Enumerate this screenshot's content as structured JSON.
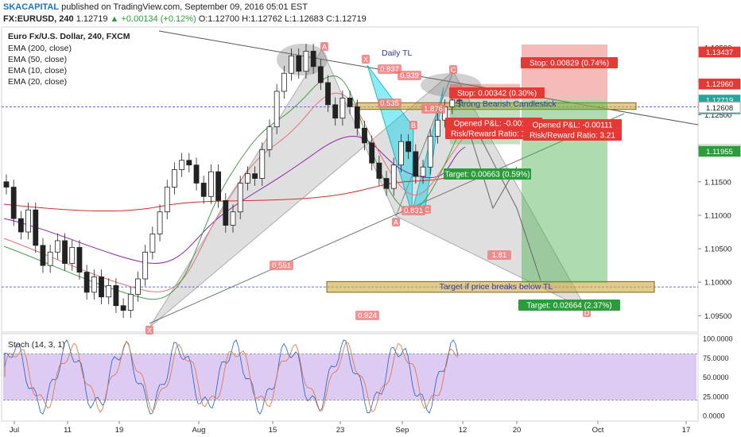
{
  "header": {
    "brand": "SKACAPITAL",
    "published": "published on TradingView.com, September 09, 2016 05:01 EST",
    "symbol": "FX:EURUSD, 240",
    "last": "1.12719",
    "change": "+0.00134 (+0.12%)",
    "ohlc": "O:1.12700 H:1.12762 L:1.12683 C:1.12719"
  },
  "legend": {
    "title": "Euro Fx/U.S. Dollar, 240, FXCM",
    "ema200": "EMA (200, close)",
    "ema50": "EMA (50, close)",
    "ema10": "EMA (10, close)",
    "ema20": "EMA (20, close)"
  },
  "stoch_label": "Stoch (14, 3, 1)",
  "chart_data": {
    "type": "candlestick",
    "symbol": "EURUSD",
    "timeframe": "240",
    "ylim": [
      1.0935,
      1.1368
    ],
    "y_ticks": [
      "1.13500",
      "1.13000",
      "1.12500",
      "1.12000",
      "1.11500",
      "1.11000",
      "1.10500",
      "1.10000",
      "1.09500"
    ],
    "x_ticks": [
      "Jul",
      "11",
      "19",
      "Aug",
      "15",
      "23",
      "Sep",
      "12",
      "20",
      "Oct",
      "17"
    ],
    "price_markers": [
      {
        "label": "1.13437",
        "value": 1.13437,
        "color": "#e53935"
      },
      {
        "label": "1.12960",
        "value": 1.1296,
        "color": "#e53935"
      },
      {
        "label": "1.12719",
        "value": 1.12719,
        "color": "#26a69a"
      },
      {
        "label": "2:59:16",
        "value": 1.1259,
        "color": "#26a69a"
      },
      {
        "label": "1.12618",
        "value": 1.12618,
        "color": "#ffffff"
      },
      {
        "label": "1.12608",
        "value": 1.12608,
        "color": "#ffffff"
      },
      {
        "label": "1.11978",
        "value": 1.11978,
        "color": "#ffffff"
      },
      {
        "label": "1.11955",
        "value": 1.11955,
        "color": "#2a9d3a"
      }
    ],
    "close_series": [
      1.1142,
      1.1095,
      1.1075,
      1.1108,
      1.1055,
      1.1025,
      1.1045,
      1.1062,
      1.1028,
      1.1052,
      1.1015,
      1.0985,
      1.1008,
      1.0978,
      1.0995,
      1.0965,
      1.0958,
      1.0982,
      1.1005,
      1.1045,
      1.1072,
      1.1105,
      1.1142,
      1.1168,
      1.1182,
      1.1175,
      1.1148,
      1.1128,
      1.1165,
      1.1122,
      1.1085,
      1.1105,
      1.1148,
      1.1162,
      1.1155,
      1.1198,
      1.1232,
      1.1285,
      1.1312,
      1.1338,
      1.1315,
      1.1345,
      1.1322,
      1.1298,
      1.1265,
      1.1245,
      1.1275,
      1.1262,
      1.123,
      1.1208,
      1.1178,
      1.1155,
      1.114,
      1.1175,
      1.121,
      1.1195,
      1.1158,
      1.1172,
      1.1218,
      1.1242,
      1.1262,
      1.1272,
      1.1272
    ],
    "annotations": [
      {
        "text": "Daily TL"
      },
      {
        "text": "Strong Bearish Candlestick"
      },
      {
        "text": "Target if price breaks below TL"
      }
    ],
    "harmonic_labels": [
      "X",
      "A",
      "B",
      "C",
      "D",
      "X",
      "A",
      "B",
      "C",
      "D"
    ],
    "ratio_labels": [
      "0.837",
      "0.939",
      "0.535",
      "1.876",
      "0.551",
      "0.924",
      "1.81",
      "0.831"
    ],
    "positions": [
      {
        "stop": "Stop: 0.00342 (0.30%)",
        "pl": "Opened P&L: -0.00111",
        "rr": "Risk/Reward Ratio: 1.94",
        "target": "Target: 0.00663 (0.59%)"
      },
      {
        "stop": "Stop: 0.00829 (0.74%)",
        "pl": "Opened P&L: -0.00111",
        "rr": "Risk/Reward Ratio: 3.21",
        "target": "Target: 0.02664 (2.37%)"
      }
    ],
    "stoch": {
      "ylim": [
        0,
        100
      ],
      "y_ticks": [
        "100.0000",
        "75.0000",
        "50.0000",
        "25.0000",
        "0.0000"
      ],
      "overbought": 80,
      "oversold": 20
    }
  }
}
